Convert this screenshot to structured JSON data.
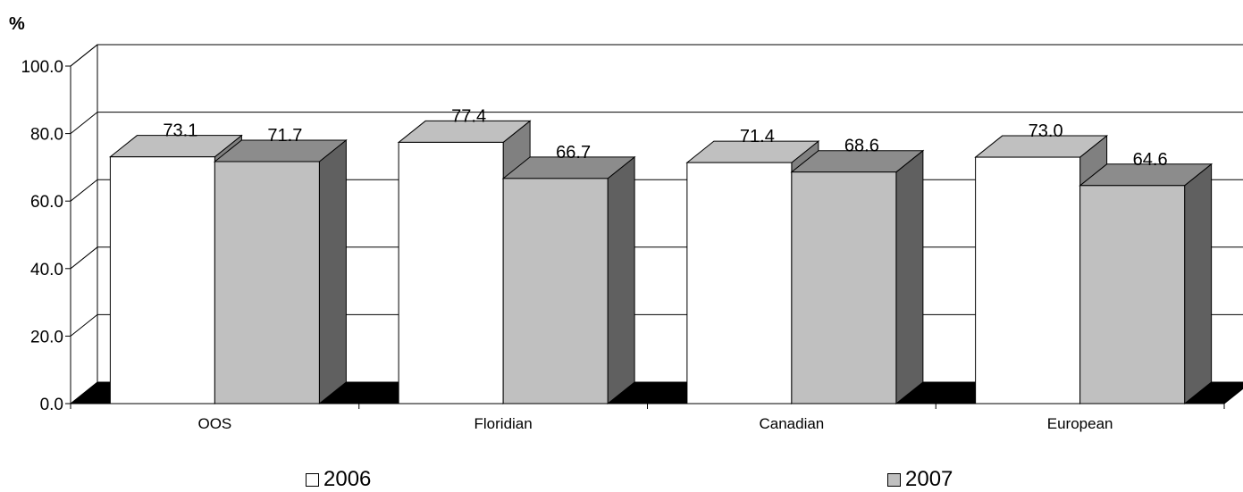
{
  "chart_data": {
    "type": "bar",
    "ylabel": "%",
    "categories": [
      "OOS",
      "Floridian",
      "Canadian",
      "European"
    ],
    "series": [
      {
        "name": "2006",
        "values": [
          73.1,
          77.4,
          71.4,
          73.0
        ],
        "color": "#ffffff",
        "top_color": "#c0c0c0",
        "side_color": "#808080"
      },
      {
        "name": "2007",
        "values": [
          71.7,
          66.7,
          68.6,
          64.6
        ],
        "color": "#c0c0c0",
        "top_color": "#8c8c8c",
        "side_color": "#606060"
      }
    ],
    "ylim": [
      0,
      100
    ],
    "yticks": [
      "0.0",
      "20.0",
      "40.0",
      "60.0",
      "80.0",
      "100.0"
    ],
    "data_labels": [
      [
        "73.1",
        "77.4",
        "71.4",
        "73.0"
      ],
      [
        "71.7",
        "66.7",
        "68.6",
        "64.6"
      ]
    ],
    "grid": true,
    "three_d": true,
    "legend_position": "bottom"
  }
}
